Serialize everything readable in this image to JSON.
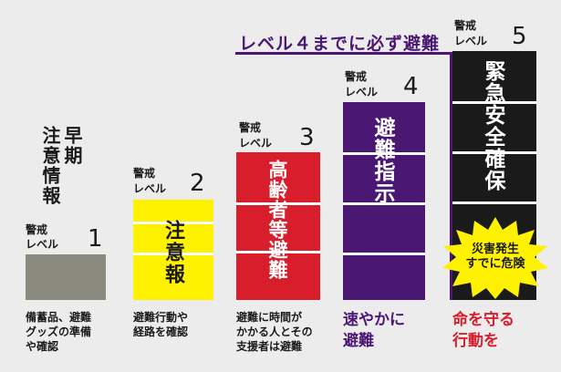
{
  "banner": "レベル４までに必ず避難",
  "keikai": "警戒",
  "reberu": "レベル",
  "levels": [
    {
      "num": "1",
      "vertical": [
        "早期",
        "注意情報"
      ],
      "caption": [
        "備蓄品、避難",
        "グッズの準備",
        "や確認"
      ]
    },
    {
      "num": "2",
      "vertical": [
        "注意報"
      ],
      "caption": [
        "避難行動や",
        "経路を確認"
      ]
    },
    {
      "num": "3",
      "vertical": [
        "高齢者等避難"
      ],
      "caption": [
        "避難に時間が",
        "かかる人とその",
        "支援者は避難"
      ]
    },
    {
      "num": "4",
      "vertical": [
        "避難指示"
      ],
      "caption": [
        "速やかに",
        "避難"
      ]
    },
    {
      "num": "5",
      "vertical": [
        "緊急安全確保"
      ],
      "caption": [
        "命を守る",
        "行動を"
      ]
    }
  ],
  "burst": [
    "災害発生",
    "すでに危険"
  ],
  "colors": {
    "level1": "#8a8a7e",
    "level2": "#fff200",
    "level3": "#d81e2b",
    "level4": "#4a1873",
    "level5": "#1a1a1a",
    "burst": "#fff200",
    "caption4": "#4a1873",
    "caption5": "#d81e2b"
  }
}
